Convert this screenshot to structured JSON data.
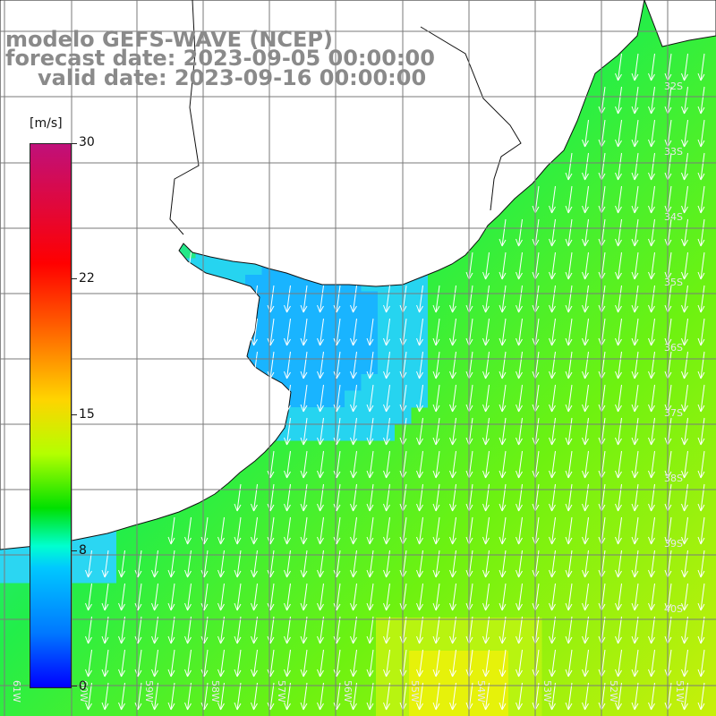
{
  "title": {
    "line1": "modelo GEFS-WAVE (NCEP)",
    "line2": "forecast date: 2023-09-05 00:00:00",
    "line3": "valid date: 2023-09-16 00:00:00"
  },
  "colorbar": {
    "units": "[m/s]",
    "ticks": [
      "30",
      "22",
      "15",
      "8",
      "0"
    ],
    "min": 0,
    "max": 30
  },
  "map": {
    "lat_labels": [
      "32S",
      "33S",
      "34S",
      "35S",
      "36S",
      "37S",
      "38S",
      "39S",
      "40S"
    ],
    "lon_labels": [
      "61W",
      "60W",
      "59W",
      "58W",
      "57W",
      "56W",
      "55W",
      "54W",
      "53W",
      "52W",
      "51W"
    ],
    "land_color": "#ffffff",
    "arrow_color": "#ffffff",
    "grid_color": "#7a7a7a"
  }
}
